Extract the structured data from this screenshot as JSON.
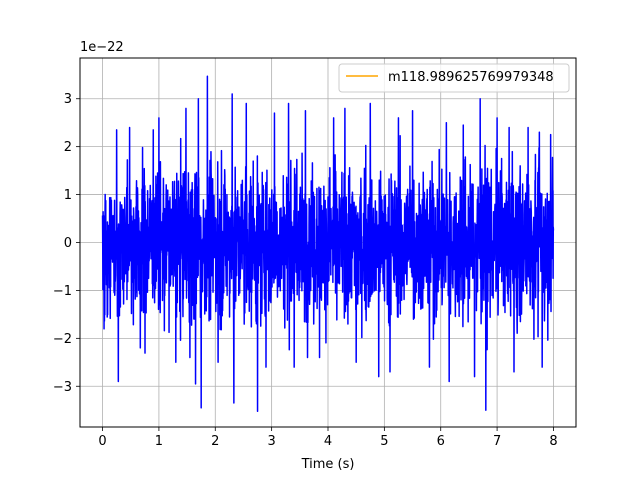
{
  "chart_data": {
    "type": "line",
    "title": "",
    "xlabel": "Time (s)",
    "ylabel": "",
    "offset_text": "1e−22",
    "xlim": [
      -0.4,
      8.4
    ],
    "ylim": [
      -3.85,
      3.85
    ],
    "xticks": [
      0,
      1,
      2,
      3,
      4,
      5,
      6,
      7,
      8
    ],
    "xtick_labels": [
      "0",
      "1",
      "2",
      "3",
      "4",
      "5",
      "6",
      "7",
      "8"
    ],
    "yticks": [
      -3,
      -2,
      -1,
      0,
      1,
      2,
      3
    ],
    "ytick_labels": [
      "−3",
      "−2",
      "−1",
      "0",
      "1",
      "2",
      "3"
    ],
    "grid": true,
    "legend_position": "upper right",
    "series": [
      {
        "name": "",
        "color": "#0000ff",
        "x_range": [
          0,
          8
        ],
        "scale": 1e-22,
        "summary": {
          "typical_amplitude": 1.7,
          "peak_max": 3.47,
          "peak_min": -3.52
        },
        "peaks": [
          {
            "x": 0.25,
            "y": 2.35
          },
          {
            "x": 0.28,
            "y": -2.9
          },
          {
            "x": 0.48,
            "y": 2.4
          },
          {
            "x": 0.67,
            "y": -2.2
          },
          {
            "x": 0.9,
            "y": 2.35
          },
          {
            "x": 1.0,
            "y": 2.6
          },
          {
            "x": 1.3,
            "y": -2.5
          },
          {
            "x": 1.48,
            "y": 2.8
          },
          {
            "x": 1.55,
            "y": -2.4
          },
          {
            "x": 1.65,
            "y": -2.95
          },
          {
            "x": 1.7,
            "y": 3.0
          },
          {
            "x": 1.75,
            "y": -3.45
          },
          {
            "x": 1.86,
            "y": 3.47
          },
          {
            "x": 2.05,
            "y": -2.5
          },
          {
            "x": 2.3,
            "y": 3.1
          },
          {
            "x": 2.33,
            "y": -3.35
          },
          {
            "x": 2.55,
            "y": 2.9
          },
          {
            "x": 2.75,
            "y": -3.52
          },
          {
            "x": 2.9,
            "y": -2.6
          },
          {
            "x": 3.05,
            "y": 2.7
          },
          {
            "x": 3.3,
            "y": 2.9
          },
          {
            "x": 3.4,
            "y": -2.6
          },
          {
            "x": 3.6,
            "y": 2.75
          },
          {
            "x": 3.85,
            "y": -2.4
          },
          {
            "x": 4.1,
            "y": 2.6
          },
          {
            "x": 4.3,
            "y": 2.8
          },
          {
            "x": 4.5,
            "y": -2.5
          },
          {
            "x": 4.75,
            "y": 2.9
          },
          {
            "x": 4.9,
            "y": -2.8
          },
          {
            "x": 5.1,
            "y": -2.7
          },
          {
            "x": 5.25,
            "y": 2.6
          },
          {
            "x": 5.5,
            "y": 2.75
          },
          {
            "x": 5.8,
            "y": -2.6
          },
          {
            "x": 6.1,
            "y": 2.5
          },
          {
            "x": 6.15,
            "y": -2.9
          },
          {
            "x": 6.4,
            "y": 2.45
          },
          {
            "x": 6.6,
            "y": -2.8
          },
          {
            "x": 6.7,
            "y": 3.0
          },
          {
            "x": 6.8,
            "y": -3.5
          },
          {
            "x": 7.0,
            "y": 2.6
          },
          {
            "x": 7.3,
            "y": -2.7
          },
          {
            "x": 7.55,
            "y": 2.4
          },
          {
            "x": 7.75,
            "y": 2.3
          },
          {
            "x": 7.8,
            "y": -2.6
          },
          {
            "x": 7.95,
            "y": 2.25
          }
        ]
      },
      {
        "name": "m118.989625769979348",
        "color": "#ffa500",
        "values": []
      }
    ]
  }
}
